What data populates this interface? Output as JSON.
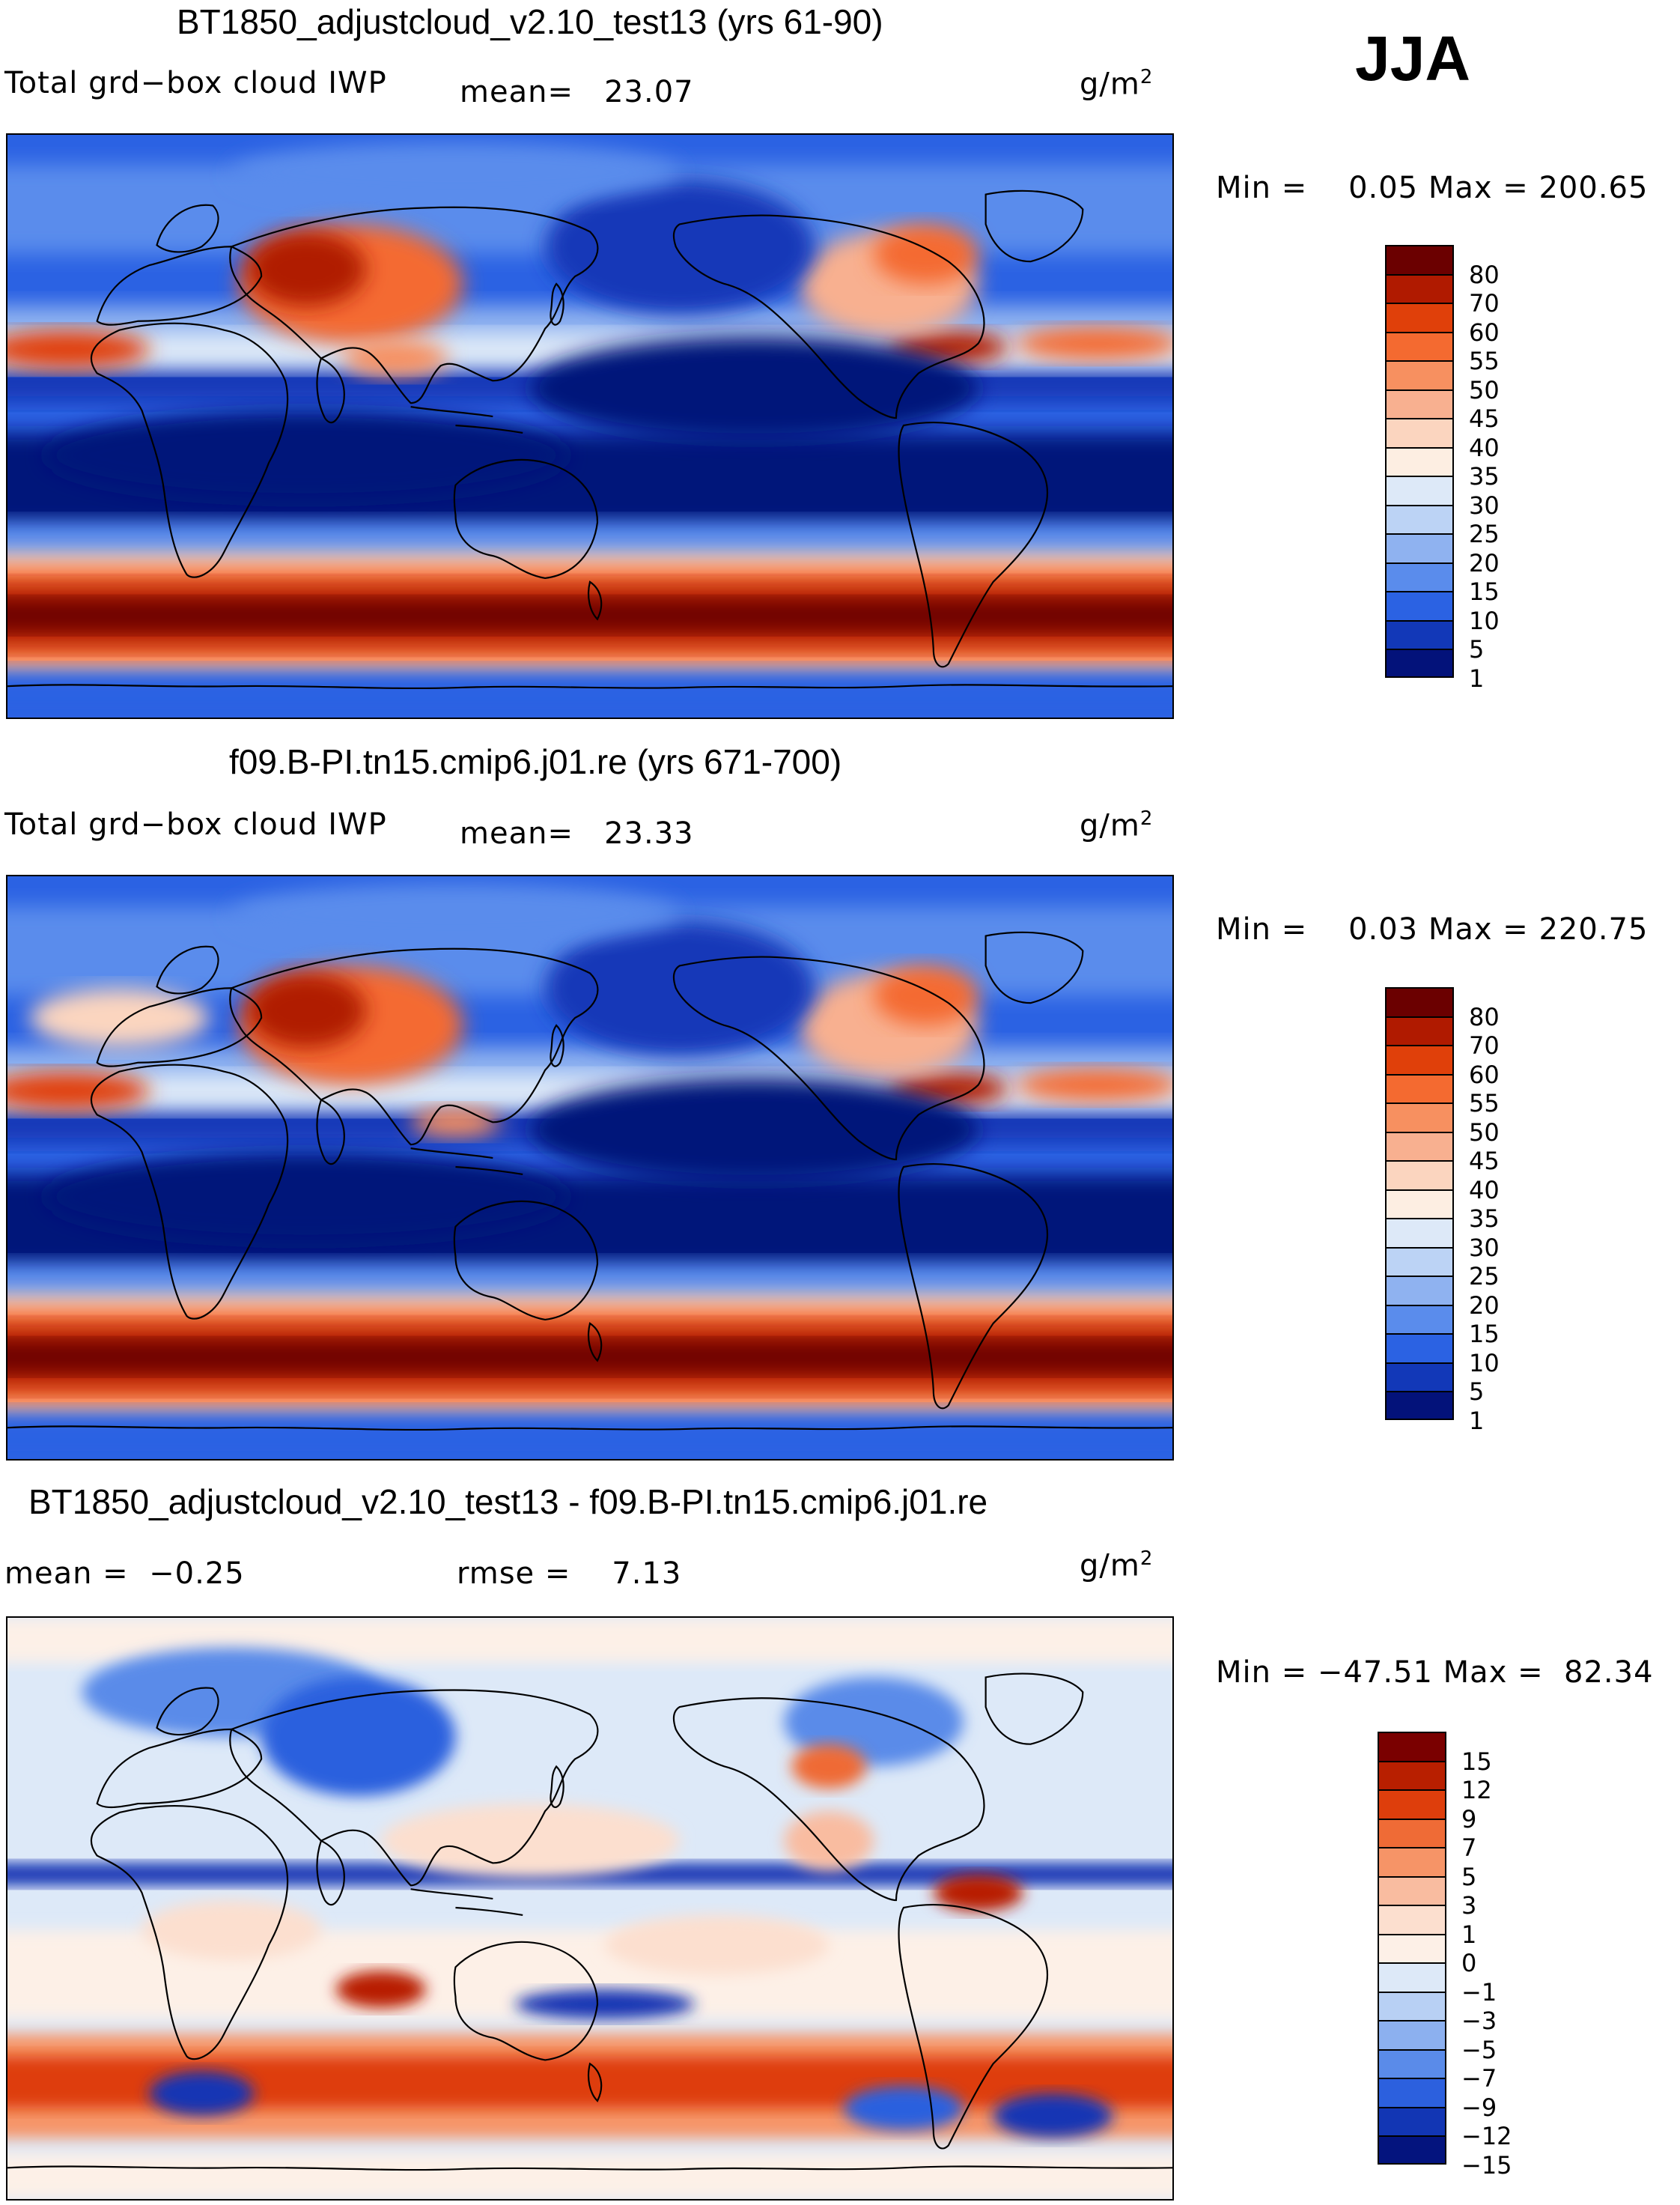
{
  "season": "JJA",
  "panels": [
    {
      "title": "BT1850_adjustcloud_v2.10_test13 (yrs 61-90)",
      "variable": "Total grd−box cloud IWP",
      "mean_text": "mean=   23.07",
      "units_base": "g/m",
      "units_exp": "2",
      "minmax": "Min =    0.05 Max = 200.65",
      "colorbar_labels": [
        "80",
        "70",
        "60",
        "55",
        "50",
        "45",
        "40",
        "35",
        "30",
        "25",
        "20",
        "15",
        "10",
        "5",
        "1"
      ]
    },
    {
      "title": "f09.B-PI.tn15.cmip6.j01.re (yrs 671-700)",
      "variable": "Total grd−box cloud IWP",
      "mean_text": "mean=   23.33",
      "units_base": "g/m",
      "units_exp": "2",
      "minmax": "Min =    0.03 Max = 220.75",
      "colorbar_labels": [
        "80",
        "70",
        "60",
        "55",
        "50",
        "45",
        "40",
        "35",
        "30",
        "25",
        "20",
        "15",
        "10",
        "5",
        "1"
      ]
    },
    {
      "title": "BT1850_adjustcloud_v2.10_test13 - f09.B-PI.tn15.cmip6.j01.re",
      "mean_text": "mean =  −0.25",
      "rmse_text": "rmse =    7.13",
      "units_base": "g/m",
      "units_exp": "2",
      "minmax": "Min = −47.51 Max =  82.34",
      "colorbar_labels": [
        "15",
        "12",
        "9",
        "7",
        "5",
        "3",
        "1",
        "0",
        "−1",
        "−3",
        "−5",
        "−7",
        "−9",
        "−12",
        "−15"
      ]
    }
  ],
  "colors": {
    "abs_scale": [
      "#6b0000",
      "#b01a00",
      "#e0400a",
      "#f46a30",
      "#f79060",
      "#f8b090",
      "#fbd5bf",
      "#fdeee2",
      "#dde9f8",
      "#bcd3f5",
      "#8fb2f0",
      "#5a8cec",
      "#2b62e3",
      "#1238b8",
      "#03127a"
    ],
    "diff_scale": [
      "#7a0000",
      "#b81f00",
      "#de3e0c",
      "#ef6b36",
      "#f69467",
      "#f9bca0",
      "#fcdfcf",
      "#fdf0e7",
      "#dde9f8",
      "#b8d0f4",
      "#8cb0ef",
      "#5a8be9",
      "#2c60de",
      "#1236b4",
      "#04147e"
    ],
    "coast": "#000000"
  },
  "chart_data": [
    {
      "type": "heatmap",
      "title": "BT1850_adjustcloud_v2.10_test13 (yrs 61-90)",
      "subtitle": "Total grd−box cloud IWP",
      "mean": 23.07,
      "min": 0.05,
      "max": 200.65,
      "units": "g/m2",
      "contour_levels": [
        1,
        5,
        10,
        15,
        20,
        25,
        30,
        35,
        40,
        45,
        50,
        55,
        60,
        70,
        80
      ]
    },
    {
      "type": "heatmap",
      "title": "f09.B-PI.tn15.cmip6.j01.re (yrs 671-700)",
      "subtitle": "Total grd−box cloud IWP",
      "mean": 23.33,
      "min": 0.03,
      "max": 220.75,
      "units": "g/m2",
      "contour_levels": [
        1,
        5,
        10,
        15,
        20,
        25,
        30,
        35,
        40,
        45,
        50,
        55,
        60,
        70,
        80
      ]
    },
    {
      "type": "heatmap",
      "title": "BT1850_adjustcloud_v2.10_test13 - f09.B-PI.tn15.cmip6.j01.re",
      "mean": -0.25,
      "rmse": 7.13,
      "min": -47.51,
      "max": 82.34,
      "units": "g/m2",
      "contour_levels": [
        -15,
        -12,
        -9,
        -7,
        -5,
        -3,
        -1,
        0,
        1,
        3,
        5,
        7,
        9,
        12,
        15
      ]
    }
  ]
}
